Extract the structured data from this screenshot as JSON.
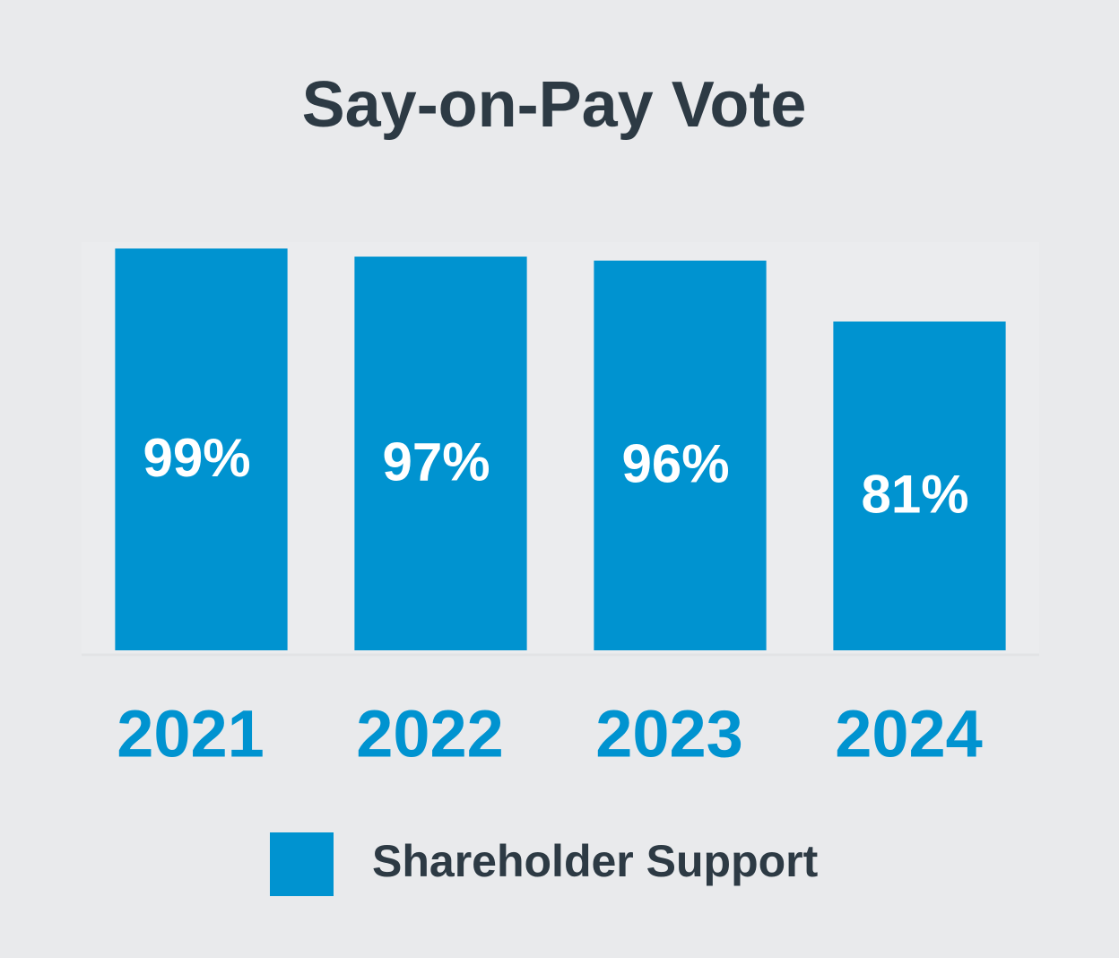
{
  "chart_data": {
    "type": "bar",
    "title": "Say-on-Pay Vote",
    "categories": [
      "2021",
      "2022",
      "2023",
      "2024"
    ],
    "series": [
      {
        "name": "Shareholder Support",
        "color": "#0093d0",
        "values": [
          99,
          97,
          96,
          81
        ],
        "value_labels": [
          "99%",
          "97%",
          "96%",
          "81%"
        ]
      }
    ],
    "ylim": [
      0,
      100
    ]
  }
}
